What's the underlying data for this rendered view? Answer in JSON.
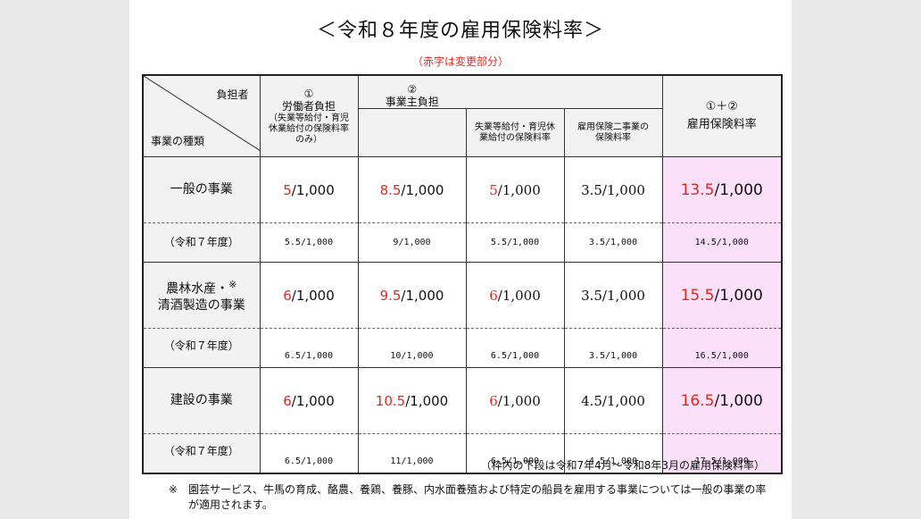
{
  "title": "＜令和８年度の雇用保険料率＞",
  "subtitle": "（赤字は変更部分）",
  "header": {
    "corner_top": "負担者",
    "corner_bottom": "事業の種類",
    "col1_num": "①",
    "col1_title": "労働者負担",
    "col1_note": "（失業等給付・育児休業給付の保険料率のみ）",
    "col2_num": "②",
    "col2_title": "事業主負担",
    "col2a": "失業等給付・育児休業給付の保険料率",
    "col2b": "雇用保険二事業の保険料率",
    "total_num": "①＋②",
    "total_title": "雇用保険料率"
  },
  "rows": [
    {
      "category": "一般の事業",
      "worker": {
        "num": "5",
        "rest": "/1,000"
      },
      "employer": {
        "num": "8.5",
        "rest": "/1,000"
      },
      "employer_a": {
        "num": "5",
        "rest": "/1,000"
      },
      "employer_b": "3.5/1,000",
      "total": {
        "num": "13.5",
        "rest": "/1,000"
      },
      "prev_label": "（令和７年度）",
      "prev": [
        "5.5/1,000",
        "9/1,000",
        "5.5/1,000",
        "3.5/1,000",
        "14.5/1,000"
      ]
    },
    {
      "category_line1": "農林水産・",
      "category_mark": "※",
      "category_line2": "清酒製造の事業",
      "worker": {
        "num": "6",
        "rest": "/1,000"
      },
      "employer": {
        "num": "9.5",
        "rest": "/1,000"
      },
      "employer_a": {
        "num": "6",
        "rest": "/1,000"
      },
      "employer_b": "3.5/1,000",
      "total": {
        "num": "15.5",
        "rest": "/1,000"
      },
      "prev_label": "（令和７年度）",
      "prev": [
        "6.5/1,000",
        "10/1,000",
        "6.5/1,000",
        "3.5/1,000",
        "16.5/1,000"
      ]
    },
    {
      "category": "建設の事業",
      "worker": {
        "num": "6",
        "rest": "/1,000"
      },
      "employer": {
        "num": "10.5",
        "rest": "/1,000"
      },
      "employer_a": {
        "num": "6",
        "rest": "/1,000"
      },
      "employer_b": "4.5/1,000",
      "total": {
        "num": "16.5",
        "rest": "/1,000"
      },
      "prev_label": "（令和７年度）",
      "prev": [
        "6.5/1,000",
        "11/1,000",
        "6.5/1,000",
        "4.5/1,000",
        "17.5/1,000"
      ]
    }
  ],
  "footnote_range": "（枠内の下段は令和7年4月～令和8年3月の雇用保険料率）",
  "footnote_mark": "※",
  "footnote_text": "園芸サービス、牛馬の育成、酪農、養鶏、養豚、内水面養殖および特定の船員を雇用する事業については一般の事業の率が適用されます。",
  "colors": {
    "changed": "#e0281f",
    "total_bg": "#fce0fa",
    "header_bg": "#f2f2f2"
  }
}
